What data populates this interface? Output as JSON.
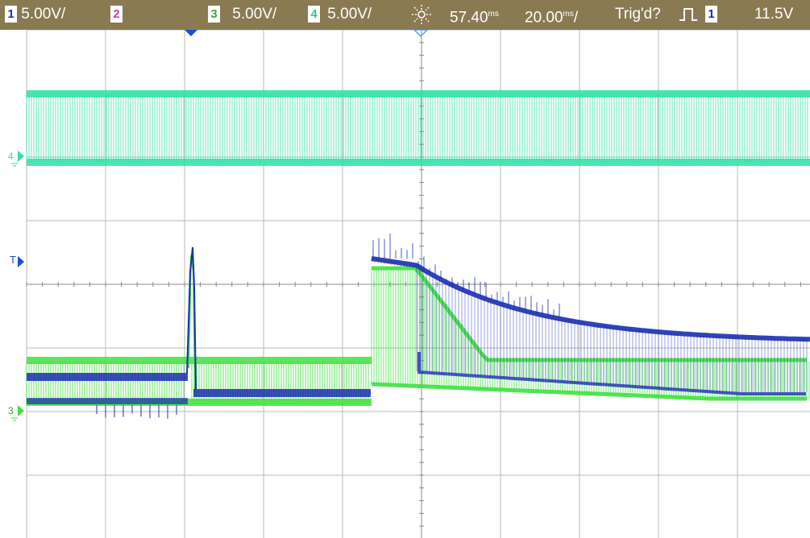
{
  "status_bar": {
    "ch1_num": "1",
    "ch1_scale": "5.00V/",
    "ch2_num": "2",
    "ch3_num": "3",
    "ch3_scale": "5.00V/",
    "ch4_num": "4",
    "ch4_scale": "5.00V/",
    "brightness_icon": "sun-icon",
    "delay_value": "57.40",
    "delay_unit": "ms",
    "timebase_value": "20.00",
    "timebase_unit": "ms",
    "timebase_suffix": "/",
    "trigger_status": "Trig'd?",
    "trigger_edge_icon": "rising-edge-icon",
    "trigger_source": "1",
    "trigger_level": "11.5V"
  },
  "markers": {
    "ch4_ground": "4",
    "ch3_ground": "3",
    "trigger_level": "T"
  },
  "colors": {
    "ch1": "#1a2fb0",
    "ch3": "#3fe040",
    "ch4": "#2ee0a0",
    "status_bg": "#8a7a52",
    "grid": "#b8b8b8"
  }
}
